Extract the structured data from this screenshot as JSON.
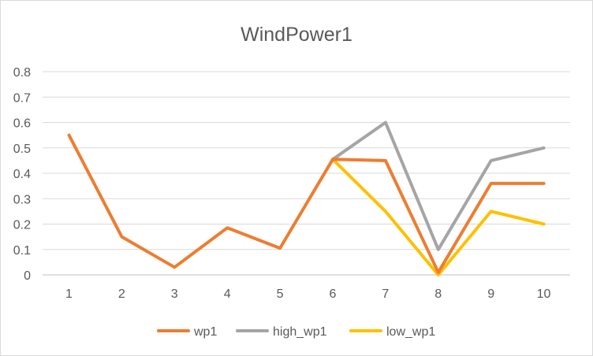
{
  "chart_data": {
    "type": "line",
    "title": "WindPower1",
    "xlabel": "",
    "ylabel": "",
    "categories": [
      "1",
      "2",
      "3",
      "4",
      "5",
      "6",
      "7",
      "8",
      "9",
      "10"
    ],
    "ylim": [
      0,
      0.8
    ],
    "yticks": [
      "0",
      "0.1",
      "0.2",
      "0.3",
      "0.4",
      "0.5",
      "0.6",
      "0.7",
      "0.8"
    ],
    "grid": true,
    "legend_position": "bottom",
    "series": [
      {
        "name": "wp1",
        "color": "#ED7D31",
        "values": [
          0.55,
          0.15,
          0.03,
          0.185,
          0.105,
          0.455,
          0.45,
          0.01,
          0.36,
          0.36
        ]
      },
      {
        "name": "high_wp1",
        "color": "#A5A5A5",
        "values": [
          null,
          null,
          null,
          null,
          null,
          0.455,
          0.6,
          0.1,
          0.45,
          0.5
        ]
      },
      {
        "name": "low_wp1",
        "color": "#FFC000",
        "values": [
          null,
          null,
          null,
          null,
          null,
          0.455,
          0.25,
          0.0,
          0.25,
          0.2
        ]
      }
    ]
  }
}
